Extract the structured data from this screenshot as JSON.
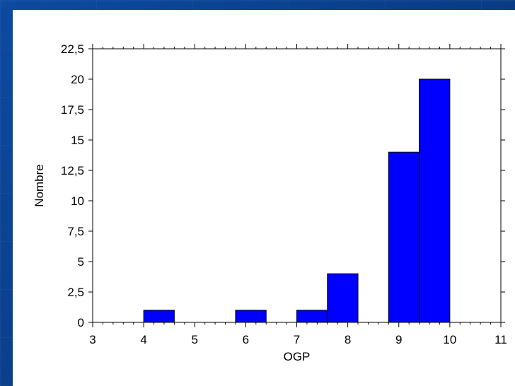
{
  "chart_data": {
    "type": "bar",
    "title": "",
    "xlabel": "OGP",
    "ylabel": "Nombre",
    "xlim": [
      3,
      11
    ],
    "ylim": [
      0,
      22.5
    ],
    "x_ticks": [
      "3",
      "4",
      "5",
      "6",
      "7",
      "8",
      "9",
      "10",
      "11"
    ],
    "y_ticks": [
      "0",
      "2,5",
      "5",
      "7,5",
      "10",
      "12,5",
      "15",
      "17,5",
      "20",
      "22,5"
    ],
    "bins": [
      {
        "x0": 4.0,
        "x1": 4.6,
        "value": 1
      },
      {
        "x0": 5.8,
        "x1": 6.4,
        "value": 1
      },
      {
        "x0": 7.0,
        "x1": 7.6,
        "value": 1
      },
      {
        "x0": 7.6,
        "x1": 8.2,
        "value": 4
      },
      {
        "x0": 8.8,
        "x1": 9.4,
        "value": 14
      },
      {
        "x0": 9.4,
        "x1": 10.0,
        "value": 20
      }
    ],
    "bar_color": "#0000ff",
    "grid": false,
    "legend": "none"
  },
  "colors": {
    "background": "#0a3c8c",
    "panel": "#ffffff",
    "bar": "#0000ff",
    "axis": "#000000"
  }
}
